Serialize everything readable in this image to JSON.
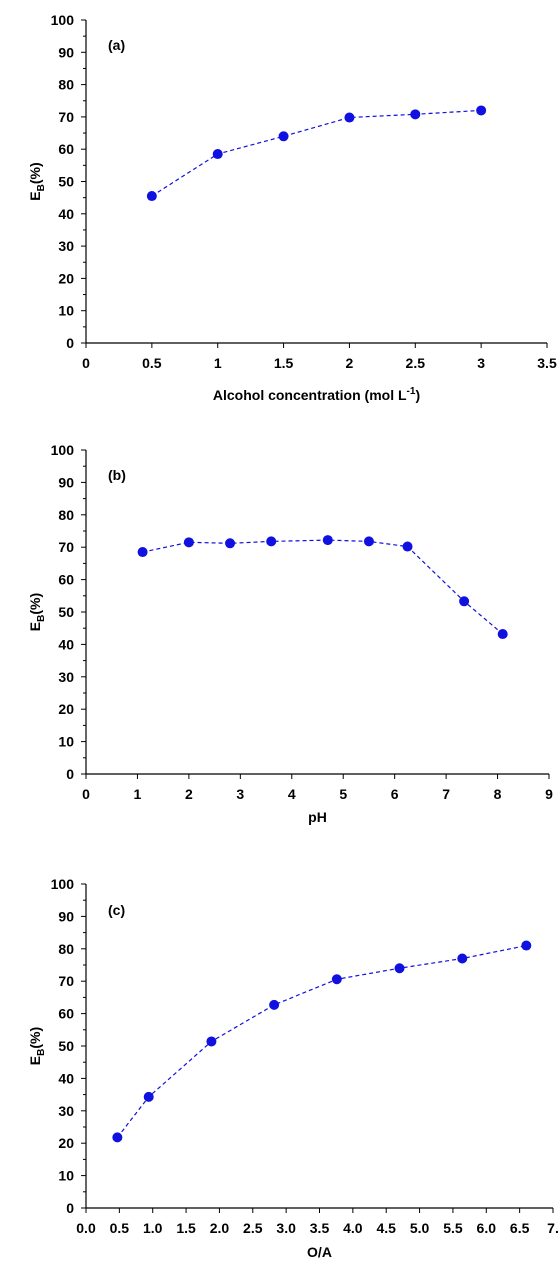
{
  "figure": {
    "colors": {
      "series": "#1010e0",
      "axis": "#000000"
    },
    "panels": [
      {
        "panel_label": "(a)",
        "xlabel_main": "Alcohol concentration (mol L",
        "xlabel_sup": "-1",
        "xlabel_end": ")",
        "ylabel_main": "E",
        "ylabel_sub": "B",
        "ylabel_end": "(%)",
        "x_ticks": [
          "0",
          "0.5",
          "1",
          "1.5",
          "2",
          "2.5",
          "3",
          "3.5"
        ],
        "y_ticks": [
          "0",
          "10",
          "20",
          "30",
          "40",
          "50",
          "60",
          "70",
          "80",
          "90",
          "100"
        ]
      },
      {
        "panel_label": "(b)",
        "xlabel_main": "pH",
        "xlabel_sup": "",
        "xlabel_end": "",
        "ylabel_main": "E",
        "ylabel_sub": "B",
        "ylabel_end": "(%)",
        "x_ticks": [
          "0",
          "1",
          "2",
          "3",
          "4",
          "5",
          "6",
          "7",
          "8",
          "9"
        ],
        "y_ticks": [
          "0",
          "10",
          "20",
          "30",
          "40",
          "50",
          "60",
          "70",
          "80",
          "90",
          "100"
        ]
      },
      {
        "panel_label": "(c)",
        "xlabel_main": "O/A",
        "xlabel_sup": "",
        "xlabel_end": "",
        "ylabel_main": "E",
        "ylabel_sub": "B",
        "ylabel_end": "(%)",
        "x_ticks": [
          "0.0",
          "0.5",
          "1.0",
          "1.5",
          "2.0",
          "2.5",
          "3.0",
          "3.5",
          "4.0",
          "4.5",
          "5.0",
          "5.5",
          "6.0",
          "6.5",
          "7."
        ],
        "y_ticks": [
          "0",
          "10",
          "20",
          "30",
          "40",
          "50",
          "60",
          "70",
          "80",
          "90",
          "100"
        ]
      }
    ]
  },
  "chart_data": [
    {
      "type": "line",
      "xlim": [
        0,
        3.5
      ],
      "ylim": [
        0,
        100
      ],
      "grid": false,
      "line_style": "dashed",
      "marker": "circle",
      "x": [
        0.5,
        1.0,
        1.5,
        2.0,
        2.5,
        3.0
      ],
      "y": [
        45.5,
        58.5,
        64,
        69.8,
        70.8,
        72
      ]
    },
    {
      "type": "line",
      "xlim": [
        0,
        9
      ],
      "ylim": [
        0,
        100
      ],
      "grid": false,
      "line_style": "dashed",
      "marker": "circle",
      "x": [
        1.1,
        2.0,
        2.8,
        3.6,
        4.7,
        5.5,
        6.25,
        7.35,
        8.1
      ],
      "y": [
        68.5,
        71.5,
        71.2,
        71.8,
        72.2,
        71.8,
        70.2,
        53.3,
        43.2
      ]
    },
    {
      "type": "line",
      "xlim": [
        0,
        7
      ],
      "ylim": [
        0,
        100
      ],
      "grid": false,
      "line_style": "dashed",
      "marker": "circle",
      "x": [
        0.47,
        0.94,
        1.88,
        2.82,
        3.76,
        4.7,
        5.64,
        6.6
      ],
      "y": [
        21.8,
        34.3,
        51.4,
        62.7,
        70.6,
        74,
        77,
        81
      ]
    }
  ]
}
